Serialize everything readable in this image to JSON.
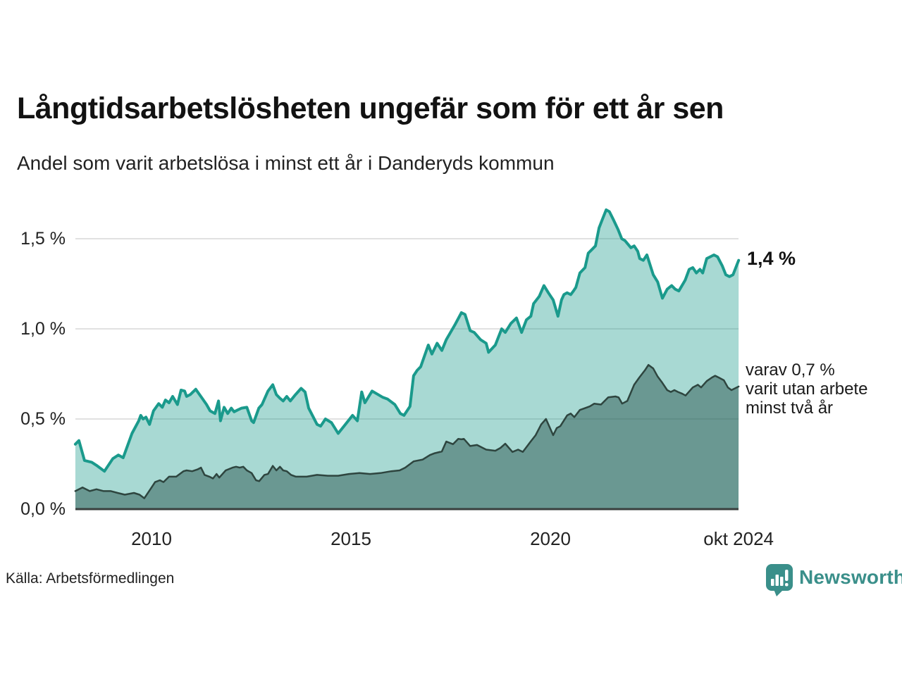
{
  "header": {
    "title": "Långtidsarbetslösheten ungefär som för ett år sen",
    "subtitle": "Andel som varit arbetslösa i minst ett år i Danderyds kommun"
  },
  "annotations": {
    "series_total_end_value": "1,4 %",
    "series_two_year_end_label": "varav 0,7 %\nvarit utan arbete\nminst två år"
  },
  "footer": {
    "source": "Källa: Arbetsförmedlingen",
    "brand_name": "Newsworthy",
    "brand_color": "#3a8f8a",
    "brand_icon": "newsworthy-bar-chart-bubble-icon"
  },
  "chart_data": {
    "type": "area",
    "title": "Långtidsarbetslösheten ungefär som för ett år sen",
    "subtitle": "Andel som varit arbetslösa i minst ett år i Danderyds kommun",
    "unit": "%",
    "grid": true,
    "legend": "none, end-of-line labels instead",
    "colors": {
      "line_total": "#1a9a8c",
      "fill_total": "rgba(26,154,140,0.38)",
      "line_two_year": "#2e453f",
      "fill_two_year": "rgba(31,74,66,0.45)",
      "gridline": "#e1e1e1",
      "baseline": "#3a3f3e"
    },
    "x_axis": {
      "range": [
        2008.09,
        2024.72
      ],
      "ticks": [
        {
          "value": 2010,
          "label": "2010"
        },
        {
          "value": 2015,
          "label": "2015"
        },
        {
          "value": 2020,
          "label": "2020"
        },
        {
          "value": 2024.72,
          "label": "okt 2024"
        }
      ]
    },
    "y_axis": {
      "range": [
        0,
        1.7
      ],
      "ticks": [
        {
          "value": 0.0,
          "label": "0,0 %"
        },
        {
          "value": 0.5,
          "label": "0,5 %"
        },
        {
          "value": 1.0,
          "label": "1,0 %"
        },
        {
          "value": 1.5,
          "label": "1,5 %"
        }
      ]
    },
    "series": [
      {
        "name": "Arbetslösa minst ett år",
        "end_value_pct": 1.4,
        "points": [
          [
            2008.09,
            0.36
          ],
          [
            2008.18,
            0.38
          ],
          [
            2008.32,
            0.27
          ],
          [
            2008.5,
            0.26
          ],
          [
            2008.64,
            0.24
          ],
          [
            2008.82,
            0.21
          ],
          [
            2009.03,
            0.28
          ],
          [
            2009.17,
            0.3
          ],
          [
            2009.29,
            0.285
          ],
          [
            2009.51,
            0.42
          ],
          [
            2009.68,
            0.49
          ],
          [
            2009.73,
            0.52
          ],
          [
            2009.79,
            0.5
          ],
          [
            2009.86,
            0.51
          ],
          [
            2009.95,
            0.47
          ],
          [
            2010.05,
            0.545
          ],
          [
            2010.18,
            0.585
          ],
          [
            2010.27,
            0.565
          ],
          [
            2010.35,
            0.605
          ],
          [
            2010.44,
            0.59
          ],
          [
            2010.53,
            0.625
          ],
          [
            2010.65,
            0.58
          ],
          [
            2010.74,
            0.66
          ],
          [
            2010.83,
            0.655
          ],
          [
            2010.88,
            0.625
          ],
          [
            2010.97,
            0.635
          ],
          [
            2011.11,
            0.665
          ],
          [
            2011.27,
            0.615
          ],
          [
            2011.38,
            0.58
          ],
          [
            2011.47,
            0.545
          ],
          [
            2011.59,
            0.53
          ],
          [
            2011.68,
            0.6
          ],
          [
            2011.73,
            0.49
          ],
          [
            2011.82,
            0.565
          ],
          [
            2011.91,
            0.53
          ],
          [
            2012.0,
            0.56
          ],
          [
            2012.07,
            0.54
          ],
          [
            2012.16,
            0.55
          ],
          [
            2012.26,
            0.56
          ],
          [
            2012.39,
            0.565
          ],
          [
            2012.51,
            0.49
          ],
          [
            2012.56,
            0.48
          ],
          [
            2012.69,
            0.56
          ],
          [
            2012.77,
            0.58
          ],
          [
            2012.92,
            0.655
          ],
          [
            2013.04,
            0.69
          ],
          [
            2013.13,
            0.635
          ],
          [
            2013.22,
            0.615
          ],
          [
            2013.3,
            0.6
          ],
          [
            2013.39,
            0.625
          ],
          [
            2013.48,
            0.6
          ],
          [
            2013.59,
            0.63
          ],
          [
            2013.75,
            0.67
          ],
          [
            2013.85,
            0.65
          ],
          [
            2013.94,
            0.56
          ],
          [
            2014.15,
            0.47
          ],
          [
            2014.24,
            0.46
          ],
          [
            2014.36,
            0.5
          ],
          [
            2014.51,
            0.48
          ],
          [
            2014.68,
            0.42
          ],
          [
            2014.86,
            0.47
          ],
          [
            2015.04,
            0.52
          ],
          [
            2015.16,
            0.49
          ],
          [
            2015.27,
            0.65
          ],
          [
            2015.35,
            0.59
          ],
          [
            2015.53,
            0.655
          ],
          [
            2015.8,
            0.62
          ],
          [
            2015.92,
            0.61
          ],
          [
            2016.1,
            0.58
          ],
          [
            2016.24,
            0.53
          ],
          [
            2016.33,
            0.52
          ],
          [
            2016.48,
            0.57
          ],
          [
            2016.57,
            0.74
          ],
          [
            2016.66,
            0.77
          ],
          [
            2016.75,
            0.79
          ],
          [
            2016.94,
            0.91
          ],
          [
            2017.03,
            0.86
          ],
          [
            2017.16,
            0.92
          ],
          [
            2017.28,
            0.88
          ],
          [
            2017.39,
            0.94
          ],
          [
            2017.6,
            1.02
          ],
          [
            2017.77,
            1.09
          ],
          [
            2017.86,
            1.08
          ],
          [
            2017.99,
            0.99
          ],
          [
            2018.09,
            0.98
          ],
          [
            2018.25,
            0.94
          ],
          [
            2018.39,
            0.92
          ],
          [
            2018.45,
            0.87
          ],
          [
            2018.62,
            0.91
          ],
          [
            2018.78,
            1.0
          ],
          [
            2018.87,
            0.98
          ],
          [
            2019.01,
            1.03
          ],
          [
            2019.15,
            1.06
          ],
          [
            2019.28,
            0.98
          ],
          [
            2019.4,
            1.05
          ],
          [
            2019.51,
            1.07
          ],
          [
            2019.58,
            1.14
          ],
          [
            2019.72,
            1.18
          ],
          [
            2019.84,
            1.24
          ],
          [
            2019.95,
            1.2
          ],
          [
            2020.07,
            1.16
          ],
          [
            2020.19,
            1.07
          ],
          [
            2020.28,
            1.16
          ],
          [
            2020.34,
            1.19
          ],
          [
            2020.42,
            1.2
          ],
          [
            2020.51,
            1.19
          ],
          [
            2020.58,
            1.21
          ],
          [
            2020.64,
            1.23
          ],
          [
            2020.74,
            1.31
          ],
          [
            2020.87,
            1.34
          ],
          [
            2020.95,
            1.42
          ],
          [
            2021.04,
            1.44
          ],
          [
            2021.13,
            1.46
          ],
          [
            2021.22,
            1.56
          ],
          [
            2021.31,
            1.61
          ],
          [
            2021.4,
            1.66
          ],
          [
            2021.48,
            1.65
          ],
          [
            2021.57,
            1.61
          ],
          [
            2021.7,
            1.55
          ],
          [
            2021.79,
            1.5
          ],
          [
            2021.87,
            1.49
          ],
          [
            2022.02,
            1.45
          ],
          [
            2022.1,
            1.46
          ],
          [
            2022.19,
            1.43
          ],
          [
            2022.24,
            1.39
          ],
          [
            2022.33,
            1.38
          ],
          [
            2022.42,
            1.41
          ],
          [
            2022.58,
            1.3
          ],
          [
            2022.69,
            1.26
          ],
          [
            2022.81,
            1.17
          ],
          [
            2022.93,
            1.22
          ],
          [
            2023.04,
            1.24
          ],
          [
            2023.13,
            1.22
          ],
          [
            2023.22,
            1.21
          ],
          [
            2023.38,
            1.27
          ],
          [
            2023.48,
            1.33
          ],
          [
            2023.57,
            1.34
          ],
          [
            2023.66,
            1.31
          ],
          [
            2023.75,
            1.33
          ],
          [
            2023.82,
            1.31
          ],
          [
            2023.92,
            1.39
          ],
          [
            2024.01,
            1.4
          ],
          [
            2024.1,
            1.41
          ],
          [
            2024.19,
            1.4
          ],
          [
            2024.31,
            1.35
          ],
          [
            2024.4,
            1.3
          ],
          [
            2024.49,
            1.29
          ],
          [
            2024.58,
            1.3
          ],
          [
            2024.72,
            1.38
          ]
        ]
      },
      {
        "name": "varav utan arbete minst två år",
        "end_value_pct": 0.7,
        "points": [
          [
            2008.09,
            0.1
          ],
          [
            2008.27,
            0.12
          ],
          [
            2008.45,
            0.1
          ],
          [
            2008.62,
            0.11
          ],
          [
            2008.8,
            0.1
          ],
          [
            2008.98,
            0.1
          ],
          [
            2009.15,
            0.09
          ],
          [
            2009.33,
            0.08
          ],
          [
            2009.56,
            0.09
          ],
          [
            2009.7,
            0.08
          ],
          [
            2009.82,
            0.06
          ],
          [
            2010.0,
            0.12
          ],
          [
            2010.09,
            0.15
          ],
          [
            2010.21,
            0.16
          ],
          [
            2010.3,
            0.15
          ],
          [
            2010.44,
            0.18
          ],
          [
            2010.62,
            0.18
          ],
          [
            2010.8,
            0.21
          ],
          [
            2010.88,
            0.215
          ],
          [
            2011.02,
            0.21
          ],
          [
            2011.15,
            0.22
          ],
          [
            2011.24,
            0.23
          ],
          [
            2011.33,
            0.19
          ],
          [
            2011.45,
            0.18
          ],
          [
            2011.54,
            0.17
          ],
          [
            2011.63,
            0.195
          ],
          [
            2011.7,
            0.175
          ],
          [
            2011.86,
            0.215
          ],
          [
            2012.03,
            0.23
          ],
          [
            2012.12,
            0.235
          ],
          [
            2012.21,
            0.23
          ],
          [
            2012.3,
            0.235
          ],
          [
            2012.39,
            0.215
          ],
          [
            2012.51,
            0.2
          ],
          [
            2012.62,
            0.16
          ],
          [
            2012.7,
            0.155
          ],
          [
            2012.83,
            0.19
          ],
          [
            2012.92,
            0.195
          ],
          [
            2013.04,
            0.24
          ],
          [
            2013.13,
            0.215
          ],
          [
            2013.22,
            0.235
          ],
          [
            2013.3,
            0.215
          ],
          [
            2013.39,
            0.21
          ],
          [
            2013.5,
            0.19
          ],
          [
            2013.62,
            0.18
          ],
          [
            2013.89,
            0.18
          ],
          [
            2014.15,
            0.19
          ],
          [
            2014.42,
            0.185
          ],
          [
            2014.68,
            0.185
          ],
          [
            2014.95,
            0.195
          ],
          [
            2015.21,
            0.2
          ],
          [
            2015.48,
            0.195
          ],
          [
            2015.74,
            0.2
          ],
          [
            2016.01,
            0.21
          ],
          [
            2016.22,
            0.215
          ],
          [
            2016.36,
            0.23
          ],
          [
            2016.57,
            0.265
          ],
          [
            2016.8,
            0.275
          ],
          [
            2016.98,
            0.3
          ],
          [
            2017.1,
            0.31
          ],
          [
            2017.28,
            0.32
          ],
          [
            2017.39,
            0.375
          ],
          [
            2017.56,
            0.36
          ],
          [
            2017.69,
            0.39
          ],
          [
            2017.77,
            0.387
          ],
          [
            2017.83,
            0.39
          ],
          [
            2017.99,
            0.35
          ],
          [
            2018.16,
            0.356
          ],
          [
            2018.39,
            0.33
          ],
          [
            2018.62,
            0.324
          ],
          [
            2018.75,
            0.34
          ],
          [
            2018.87,
            0.363
          ],
          [
            2019.05,
            0.317
          ],
          [
            2019.19,
            0.33
          ],
          [
            2019.31,
            0.317
          ],
          [
            2019.49,
            0.37
          ],
          [
            2019.63,
            0.41
          ],
          [
            2019.77,
            0.47
          ],
          [
            2019.89,
            0.5
          ],
          [
            2020.07,
            0.41
          ],
          [
            2020.16,
            0.45
          ],
          [
            2020.25,
            0.46
          ],
          [
            2020.42,
            0.52
          ],
          [
            2020.51,
            0.53
          ],
          [
            2020.6,
            0.51
          ],
          [
            2020.74,
            0.55
          ],
          [
            2020.87,
            0.56
          ],
          [
            2020.99,
            0.57
          ],
          [
            2021.1,
            0.585
          ],
          [
            2021.27,
            0.58
          ],
          [
            2021.45,
            0.62
          ],
          [
            2021.63,
            0.625
          ],
          [
            2021.71,
            0.62
          ],
          [
            2021.8,
            0.585
          ],
          [
            2021.93,
            0.6
          ],
          [
            2022.1,
            0.69
          ],
          [
            2022.23,
            0.73
          ],
          [
            2022.37,
            0.77
          ],
          [
            2022.46,
            0.8
          ],
          [
            2022.58,
            0.78
          ],
          [
            2022.69,
            0.735
          ],
          [
            2022.81,
            0.7
          ],
          [
            2022.93,
            0.66
          ],
          [
            2023.02,
            0.65
          ],
          [
            2023.11,
            0.66
          ],
          [
            2023.2,
            0.65
          ],
          [
            2023.31,
            0.64
          ],
          [
            2023.39,
            0.63
          ],
          [
            2023.57,
            0.675
          ],
          [
            2023.7,
            0.69
          ],
          [
            2023.78,
            0.675
          ],
          [
            2023.92,
            0.71
          ],
          [
            2024.05,
            0.73
          ],
          [
            2024.13,
            0.74
          ],
          [
            2024.22,
            0.73
          ],
          [
            2024.35,
            0.715
          ],
          [
            2024.45,
            0.675
          ],
          [
            2024.54,
            0.66
          ],
          [
            2024.72,
            0.68
          ]
        ]
      }
    ]
  }
}
